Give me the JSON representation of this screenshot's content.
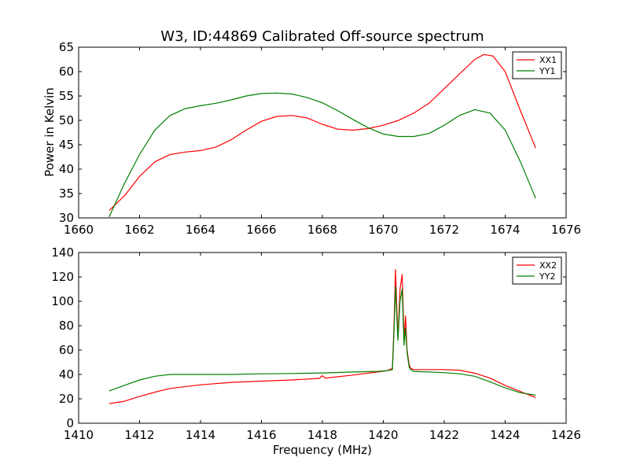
{
  "chart_data": [
    {
      "type": "line",
      "title": "W3, ID:44869 Calibrated Off-source spectrum",
      "xlabel": "",
      "ylabel": "Power in Kelvin",
      "xlim": [
        1660,
        1676
      ],
      "ylim": [
        30,
        65
      ],
      "xticks": [
        "1660",
        "1662",
        "1664",
        "1666",
        "1668",
        "1670",
        "1672",
        "1674",
        "1676"
      ],
      "yticks": [
        "30",
        "35",
        "40",
        "45",
        "50",
        "55",
        "60",
        "65"
      ],
      "grid": false,
      "legend": "top-right",
      "series": [
        {
          "name": "XX1",
          "color": "#ff0000",
          "x": [
            1661.0,
            1661.5,
            1662.0,
            1662.5,
            1663.0,
            1663.5,
            1664.0,
            1664.5,
            1665.0,
            1665.5,
            1666.0,
            1666.5,
            1667.0,
            1667.5,
            1668.0,
            1668.5,
            1669.0,
            1669.5,
            1670.0,
            1670.5,
            1671.0,
            1671.5,
            1672.0,
            1672.5,
            1673.0,
            1673.3,
            1673.6,
            1674.0,
            1674.5,
            1675.0
          ],
          "y": [
            31.5,
            34.5,
            38.5,
            41.5,
            43.0,
            43.5,
            43.8,
            44.5,
            46.0,
            48.0,
            49.8,
            50.8,
            51.0,
            50.5,
            49.2,
            48.2,
            48.0,
            48.3,
            49.0,
            50.0,
            51.5,
            53.5,
            56.5,
            59.5,
            62.5,
            63.5,
            63.2,
            60.0,
            52.0,
            44.3
          ]
        },
        {
          "name": "YY1",
          "color": "#008000",
          "x": [
            1661.0,
            1661.5,
            1662.0,
            1662.5,
            1663.0,
            1663.5,
            1664.0,
            1664.5,
            1665.0,
            1665.5,
            1666.0,
            1666.5,
            1667.0,
            1667.5,
            1668.0,
            1668.5,
            1669.0,
            1669.5,
            1670.0,
            1670.5,
            1671.0,
            1671.5,
            1672.0,
            1672.5,
            1673.0,
            1673.5,
            1674.0,
            1674.5,
            1675.0
          ],
          "y": [
            30.2,
            37.0,
            43.0,
            48.0,
            51.0,
            52.4,
            53.0,
            53.5,
            54.2,
            55.0,
            55.5,
            55.6,
            55.4,
            54.7,
            53.6,
            52.0,
            50.2,
            48.5,
            47.2,
            46.7,
            46.7,
            47.3,
            49.0,
            51.0,
            52.2,
            51.5,
            48.0,
            41.5,
            34.0
          ]
        }
      ]
    },
    {
      "type": "line",
      "title": "",
      "xlabel": "Frequency (MHz)",
      "ylabel": "",
      "xlim": [
        1410,
        1426
      ],
      "ylim": [
        0,
        140
      ],
      "xticks": [
        "1410",
        "1412",
        "1414",
        "1416",
        "1418",
        "1420",
        "1422",
        "1424",
        "1426"
      ],
      "yticks": [
        "0",
        "20",
        "40",
        "60",
        "80",
        "100",
        "120",
        "140"
      ],
      "grid": false,
      "legend": "top-right",
      "series": [
        {
          "name": "XX2",
          "color": "#ff0000",
          "x": [
            1411.0,
            1411.5,
            1412.0,
            1412.5,
            1413.0,
            1414.0,
            1415.0,
            1416.0,
            1417.0,
            1417.9,
            1418.0,
            1418.1,
            1419.0,
            1419.8,
            1420.1,
            1420.3,
            1420.35,
            1420.4,
            1420.48,
            1420.55,
            1420.62,
            1420.68,
            1420.73,
            1420.78,
            1420.85,
            1420.9,
            1421.0,
            1422.0,
            1422.5,
            1423.0,
            1423.5,
            1424.0,
            1424.5,
            1425.0
          ],
          "y": [
            16.0,
            18.0,
            22.0,
            25.5,
            28.5,
            31.5,
            33.5,
            34.5,
            35.5,
            36.8,
            39.0,
            37.0,
            39.5,
            42.0,
            43.0,
            45.0,
            80.0,
            126.0,
            70.0,
            110.0,
            122.0,
            70.0,
            88.0,
            60.0,
            48.0,
            45.0,
            44.0,
            44.0,
            43.5,
            41.0,
            37.0,
            31.0,
            26.0,
            21.0
          ]
        },
        {
          "name": "YY2",
          "color": "#008000",
          "x": [
            1411.0,
            1411.5,
            1412.0,
            1412.5,
            1413.0,
            1414.0,
            1415.0,
            1416.0,
            1417.0,
            1418.0,
            1419.0,
            1419.8,
            1420.1,
            1420.3,
            1420.35,
            1420.4,
            1420.48,
            1420.55,
            1420.62,
            1420.68,
            1420.73,
            1420.78,
            1420.85,
            1420.9,
            1421.0,
            1422.0,
            1422.5,
            1423.0,
            1423.5,
            1424.0,
            1424.5,
            1425.0
          ],
          "y": [
            26.5,
            31.0,
            35.5,
            38.5,
            40.0,
            40.0,
            40.0,
            40.5,
            40.8,
            41.2,
            42.0,
            42.5,
            43.0,
            44.0,
            75.0,
            112.0,
            68.0,
            100.0,
            110.0,
            64.0,
            78.0,
            58.0,
            46.0,
            44.0,
            42.5,
            41.5,
            40.5,
            38.5,
            34.0,
            29.0,
            25.0,
            23.0
          ]
        }
      ]
    }
  ]
}
